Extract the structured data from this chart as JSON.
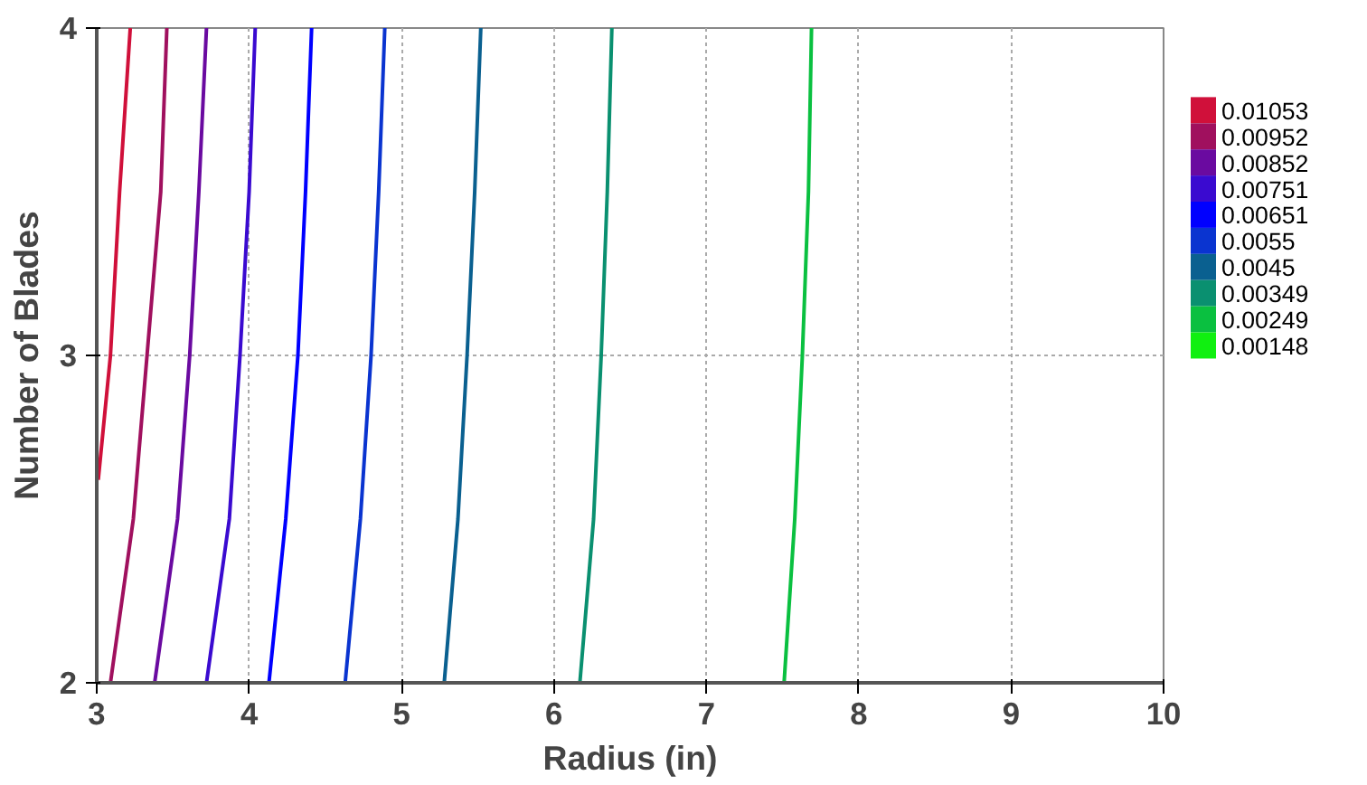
{
  "chart_data": {
    "type": "line",
    "xlabel": "Radius (in)",
    "ylabel": "Number of Blades",
    "xlim": [
      3,
      10
    ],
    "ylim": [
      2,
      4
    ],
    "xticks": [
      3,
      4,
      5,
      6,
      7,
      8,
      9,
      10
    ],
    "yticks": [
      2,
      3,
      4
    ],
    "grid": true,
    "legend": "right",
    "line_style": "solid",
    "marker": "none",
    "series": [
      {
        "name": "0.01053",
        "color": "#d0103a",
        "x": [
          3.01,
          3.09,
          3.15,
          3.22
        ],
        "values": [
          2.62,
          3,
          3.5,
          4
        ]
      },
      {
        "name": "0.00952",
        "color": "#a0105e",
        "x": [
          3.09,
          3.24,
          3.33,
          3.42,
          3.46
        ],
        "values": [
          2,
          2.5,
          3,
          3.5,
          4
        ]
      },
      {
        "name": "0.00852",
        "color": "#6a0aa0",
        "x": [
          3.38,
          3.53,
          3.61,
          3.67,
          3.72
        ],
        "values": [
          2,
          2.5,
          3,
          3.5,
          4
        ]
      },
      {
        "name": "0.00751",
        "color": "#3a0ad0",
        "x": [
          3.72,
          3.87,
          3.94,
          4.0,
          4.04
        ],
        "values": [
          2,
          2.5,
          3,
          3.5,
          4
        ]
      },
      {
        "name": "0.00651",
        "color": "#0000ff",
        "x": [
          4.13,
          4.24,
          4.32,
          4.37,
          4.41
        ],
        "values": [
          2,
          2.5,
          3,
          3.5,
          4
        ]
      },
      {
        "name": "0.0055",
        "color": "#0a34d0",
        "x": [
          4.63,
          4.73,
          4.8,
          4.85,
          4.89
        ],
        "values": [
          2,
          2.5,
          3,
          3.5,
          4
        ]
      },
      {
        "name": "0.0045",
        "color": "#0a6090",
        "x": [
          5.28,
          5.37,
          5.43,
          5.48,
          5.52
        ],
        "values": [
          2,
          2.5,
          3,
          3.5,
          4
        ]
      },
      {
        "name": "0.00349",
        "color": "#0a9070",
        "x": [
          6.17,
          6.26,
          6.31,
          6.35,
          6.38
        ],
        "values": [
          2,
          2.5,
          3,
          3.5,
          4
        ]
      },
      {
        "name": "0.00249",
        "color": "#0ac040",
        "x": [
          7.51,
          7.58,
          7.63,
          7.67,
          7.69
        ],
        "values": [
          2,
          2.5,
          3,
          3.5,
          4
        ]
      },
      {
        "name": "0.00148",
        "color": "#10f010"
      }
    ]
  }
}
